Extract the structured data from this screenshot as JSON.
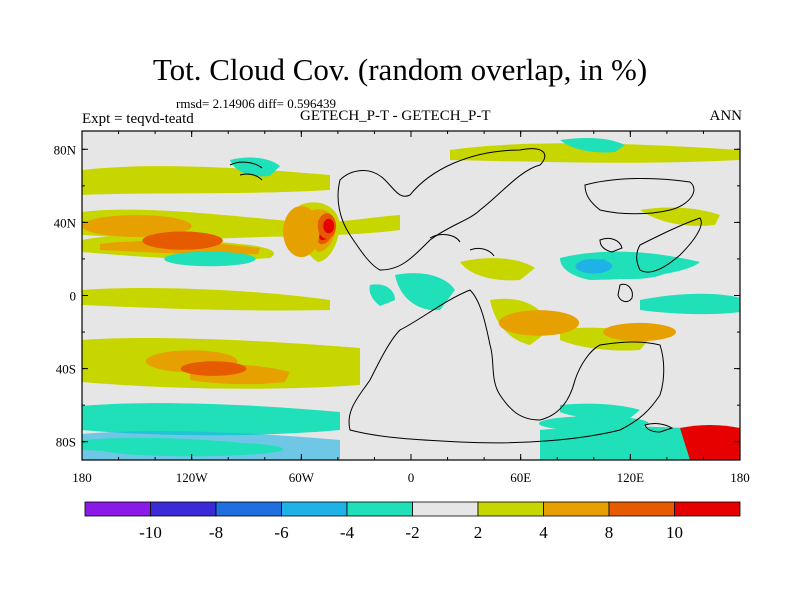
{
  "title": "Tot. Cloud Cov. (random overlap, in %)",
  "stats": "rmsd= 2.14906 diff= 0.596439",
  "expt_label": "Expt = teqvd-teatd",
  "subtitle": "GETECH_P-T - GETECH_P-T",
  "season": "ANN",
  "colors": {
    "land_outline": "#000000",
    "background_field": "#e6e6e6",
    "frame": "#000000"
  },
  "map": {
    "projection": "cylindrical-equidistant",
    "lon_range": [
      -180,
      180
    ],
    "lat_range": [
      -90,
      90
    ],
    "lon_tick_labels": [
      "180",
      "120W",
      "60W",
      "0",
      "60E",
      "120E",
      "180"
    ],
    "lat_tick_labels": [
      "80N",
      "40N",
      "0",
      "40S",
      "80S"
    ]
  },
  "colorbar": {
    "levels": [
      "-10",
      "-8",
      "-6",
      "-4",
      "-2",
      "2",
      "4",
      "8",
      "10"
    ],
    "colors": [
      "#8a1be6",
      "#3a2bd6",
      "#1f6fe0",
      "#1fb2e6",
      "#1fe0b8",
      "#e6e6e6",
      "#c8d600",
      "#e6a000",
      "#e65a00",
      "#e60000"
    ]
  },
  "anomaly_regions": [
    {
      "lon": -150,
      "lat": 38,
      "rx": 30,
      "ry": 6,
      "value": 4
    },
    {
      "lon": -125,
      "lat": 30,
      "rx": 22,
      "ry": 5,
      "value": 8
    },
    {
      "lon": -110,
      "lat": 20,
      "rx": 25,
      "ry": 4,
      "value": -4
    },
    {
      "lon": -60,
      "lat": 35,
      "rx": 10,
      "ry": 14,
      "value": 4
    },
    {
      "lon": -46,
      "lat": 38,
      "rx": 5,
      "ry": 7,
      "value": 8
    },
    {
      "lon": -45,
      "lat": 38,
      "rx": 3,
      "ry": 4,
      "value": 10
    },
    {
      "lon": -120,
      "lat": -36,
      "rx": 25,
      "ry": 6,
      "value": 4
    },
    {
      "lon": -108,
      "lat": -40,
      "rx": 18,
      "ry": 4,
      "value": 8
    },
    {
      "lon": -150,
      "lat": -66,
      "rx": 30,
      "ry": 5,
      "value": -4
    },
    {
      "lon": -120,
      "lat": -84,
      "rx": 50,
      "ry": 4,
      "value": -4
    },
    {
      "lon": 120,
      "lat": 15,
      "rx": 22,
      "ry": 6,
      "value": -4
    },
    {
      "lon": 100,
      "lat": 16,
      "rx": 10,
      "ry": 4,
      "value": -6
    },
    {
      "lon": 125,
      "lat": -20,
      "rx": 20,
      "ry": 5,
      "value": 4
    },
    {
      "lon": 70,
      "lat": -15,
      "rx": 22,
      "ry": 7,
      "value": 4
    },
    {
      "lon": 170,
      "lat": -82,
      "rx": 12,
      "ry": 5,
      "value": 10
    },
    {
      "lon": 100,
      "lat": -70,
      "rx": 30,
      "ry": 4,
      "value": -4
    }
  ]
}
